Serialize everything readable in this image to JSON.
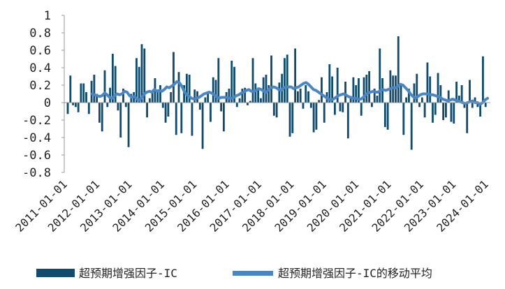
{
  "chart_data": {
    "type": "bar",
    "title": "",
    "xlabel": "",
    "ylabel": "",
    "ylim": [
      -0.8,
      1
    ],
    "yticks": [
      "1",
      "0.8",
      "0.6",
      "0.4",
      "0.2",
      "0",
      "-0.2",
      "-0.4",
      "-0.6",
      "-0.8"
    ],
    "xticks": [
      "2011-01-01",
      "2012-01-01",
      "2013-01-01",
      "2014-01-01",
      "2015-01-01",
      "2016-01-01",
      "2017-01-01",
      "2018-01-01",
      "2019-01-01",
      "2020-01-01",
      "2021-01-01",
      "2022-01-01",
      "2023-01-01",
      "2024-01-01"
    ],
    "grid": false,
    "legend_position": "bottom",
    "colors": {
      "bar": "#0f4c6e",
      "line": "#4a86c5",
      "axis": "#999999"
    },
    "series": [
      {
        "name": "超预期增强因子-IC",
        "type": "bar",
        "values": [
          -0.13,
          0.31,
          -0.03,
          -0.05,
          -0.11,
          0.22,
          0.22,
          0.12,
          -0.13,
          0.25,
          0.32,
          0.1,
          -0.23,
          -0.33,
          0.37,
          -0.05,
          0.17,
          0.56,
          0.42,
          -0.09,
          -0.4,
          0.16,
          -0.05,
          -0.51,
          0.1,
          0.12,
          0.51,
          0.41,
          0.67,
          0.62,
          -0.17,
          0.05,
          0.13,
          0.28,
          0.15,
          0.2,
          -0.06,
          -0.23,
          -0.16,
          0.12,
          0.58,
          -0.37,
          0.35,
          -0.35,
          0.2,
          0.33,
          0.32,
          -0.38,
          0.15,
          0.13,
          -0.08,
          -0.53,
          0.06,
          0.1,
          -0.22,
          0.29,
          0.26,
          0.51,
          -0.1,
          -0.33,
          0.12,
          0.16,
          0.48,
          0.41,
          -0.05,
          0.05,
          0.16,
          0.17,
          -0.03,
          0.02,
          0.51,
          0.22,
          0.17,
          0.05,
          0.29,
          0.32,
          0.2,
          0.54,
          -0.15,
          -0.17,
          0.23,
          0.33,
          0.51,
          0.55,
          -0.39,
          -0.35,
          0.62,
          0.13,
          0.16,
          -0.07,
          0.2,
          0.13,
          -0.06,
          -0.34,
          -0.31,
          0.03,
          0.29,
          -0.23,
          0.12,
          0.44,
          0.3,
          -0.14,
          0.4,
          -0.1,
          -0.11,
          0.24,
          -0.41,
          0.06,
          0.29,
          0.2,
          0.28,
          -0.15,
          0.29,
          0.32,
          0.36,
          -0.05,
          0.16,
          0.08,
          0.62,
          0.28,
          -0.28,
          -0.31,
          0.37,
          0.31,
          0.31,
          0.76,
          0.2,
          -0.37,
          0.06,
          0.16,
          -0.54,
          0.22,
          0.33,
          -0.05,
          0.06,
          -0.17,
          0.46,
          0.3,
          -0.23,
          -0.14,
          0.34,
          0.2,
          -0.2,
          -0.17,
          0.14,
          -0.22,
          -0.24,
          0.24,
          0.08,
          0.2,
          -0.06,
          -0.35,
          0.26,
          -0.06,
          0.06,
          -0.05,
          -0.16,
          0.53,
          -0.05
        ]
      },
      {
        "name": "超预期增强因子-IC的移动平均",
        "type": "line",
        "values": [
          0.1,
          0.09,
          0.08,
          0.07,
          0.08,
          0.11,
          0.09,
          0.06,
          0.05,
          0.08,
          0.1,
          0.09,
          0.1,
          0.13,
          0.12,
          0.08,
          0.06,
          0.07,
          0.04,
          0.03,
          0.06,
          0.1,
          0.12,
          0.13,
          0.12,
          0.15,
          0.13,
          0.14,
          0.13,
          0.15,
          0.18,
          0.17,
          0.19,
          0.21,
          0.24,
          0.23,
          0.19,
          0.13,
          0.09,
          0.07,
          0.05,
          0.04,
          0.05,
          0.06,
          0.08,
          0.1,
          0.11,
          0.12,
          0.11,
          0.09,
          0.07,
          0.05,
          0.06,
          0.06,
          0.06,
          0.05,
          0.05,
          0.06,
          0.08,
          0.09,
          0.11,
          0.12,
          0.14,
          0.15,
          0.13,
          0.13,
          0.14,
          0.16,
          0.15,
          0.13,
          0.12,
          0.15,
          0.17,
          0.18,
          0.17,
          0.15,
          0.14,
          0.17,
          0.18,
          0.18,
          0.18,
          0.16,
          0.17,
          0.18,
          0.2,
          0.22,
          0.23,
          0.21,
          0.18,
          0.15,
          0.14,
          0.12,
          0.1,
          0.08,
          0.06,
          0.04,
          0.03,
          0.04,
          0.06,
          0.08,
          0.09,
          0.1,
          0.09,
          0.07,
          0.06,
          0.05,
          0.05,
          0.04,
          0.04,
          0.06,
          0.09,
          0.11,
          0.12,
          0.13,
          0.12,
          0.12,
          0.14,
          0.15,
          0.14,
          0.15,
          0.16,
          0.17,
          0.17,
          0.19,
          0.21,
          0.2,
          0.17,
          0.14,
          0.1,
          0.07,
          0.05,
          0.07,
          0.09,
          0.1,
          0.1,
          0.1,
          0.09,
          0.09,
          0.08,
          0.07,
          0.06,
          0.04,
          0.03,
          0.02,
          0.03,
          0.04,
          0.03,
          0.02,
          0.01,
          0.0,
          -0.01,
          0.0,
          0.01,
          0.02,
          0.0,
          0.0,
          -0.02,
          0.0,
          0.03,
          0.05
        ]
      }
    ]
  }
}
